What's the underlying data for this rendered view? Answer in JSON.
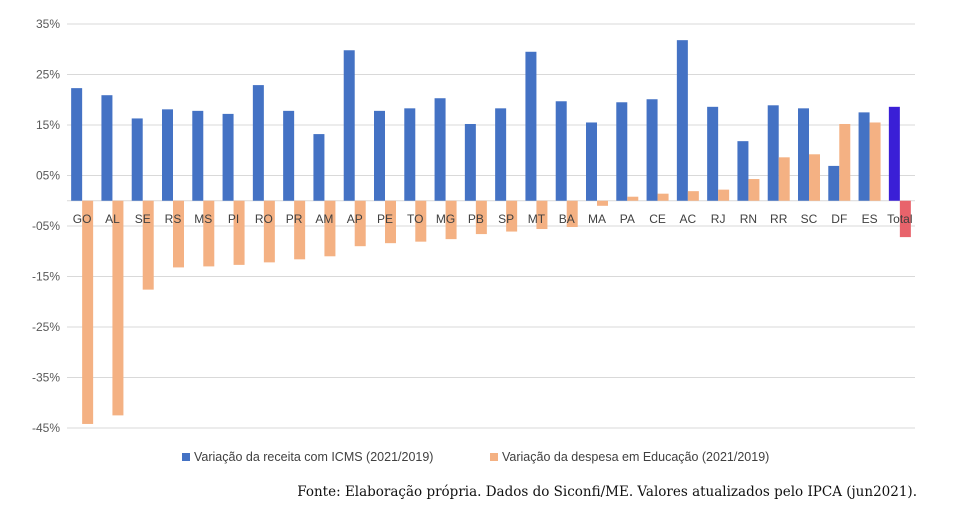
{
  "chart_data": {
    "type": "bar",
    "title": "",
    "xlabel": "",
    "ylabel": "",
    "ylim": [
      -45,
      35
    ],
    "yticks": [
      35,
      25,
      15,
      5,
      -5,
      -15,
      -25,
      -35,
      -45
    ],
    "ytick_labels": [
      "35%",
      "25%",
      "15%",
      "05%",
      "-05%",
      "-15%",
      "-25%",
      "-35%",
      "-45%"
    ],
    "grid": true,
    "legend_position": "bottom",
    "categories": [
      "GO",
      "AL",
      "SE",
      "RS",
      "MS",
      "PI",
      "RO",
      "PR",
      "AM",
      "AP",
      "PE",
      "TO",
      "MG",
      "PB",
      "SP",
      "MT",
      "BA",
      "MA",
      "PA",
      "CE",
      "AC",
      "RJ",
      "RN",
      "RR",
      "SC",
      "DF",
      "ES",
      "Total"
    ],
    "series": [
      {
        "name": "Variação da receita com ICMS (2021/2019)",
        "color": "#4472C4",
        "values": [
          22.3,
          20.9,
          16.3,
          18.1,
          17.8,
          17.2,
          22.9,
          17.8,
          13.2,
          29.8,
          17.8,
          18.3,
          20.3,
          15.2,
          18.3,
          29.5,
          19.7,
          15.5,
          19.5,
          20.1,
          31.8,
          18.6,
          11.8,
          18.9,
          18.3,
          6.9,
          17.5,
          18.6
        ]
      },
      {
        "name": "Variação da despesa em Educação (2021/2019)",
        "color": "#F4B183",
        "values": [
          -44.2,
          -42.5,
          -17.6,
          -13.2,
          -13.0,
          -12.7,
          -12.2,
          -11.6,
          -11.0,
          -9.0,
          -8.4,
          -8.1,
          -7.6,
          -6.6,
          -6.1,
          -5.6,
          -5.2,
          -1.0,
          0.8,
          1.4,
          1.9,
          2.2,
          4.3,
          8.6,
          9.2,
          15.2,
          15.5,
          -7.2
        ]
      }
    ],
    "special_colors": {
      "Total_receita": "#3A1FD6",
      "Total_despesa": "#E8636B"
    }
  },
  "legend": {
    "item1": "Variação da receita com ICMS (2021/2019)",
    "item2": "Variação da despesa em Educação (2021/2019)"
  },
  "source_note": "Fonte: Elaboração própria. Dados do Siconfi/ME. Valores atualizados pelo IPCA (jun2021)."
}
